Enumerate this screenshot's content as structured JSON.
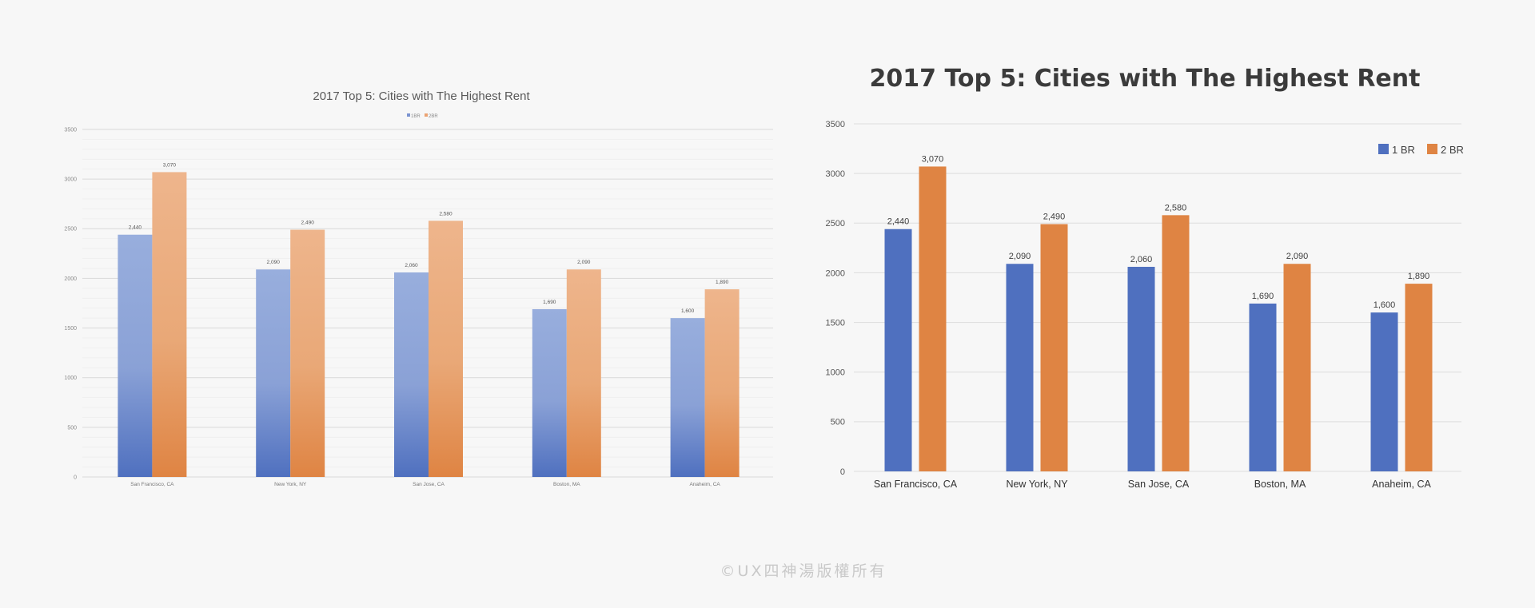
{
  "chart_data": [
    {
      "type": "bar",
      "title": "2017 Top 5: Cities with The Highest Rent",
      "categories": [
        "San Francisco, CA",
        "New York, NY",
        "San Jose, CA",
        "Boston, MA",
        "Anaheim, CA"
      ],
      "series": [
        {
          "name": "1BR",
          "values": [
            2440,
            2090,
            2060,
            1690,
            1600
          ],
          "value_labels": [
            "2,440",
            "2,090",
            "2,060",
            "1,690",
            "1,600"
          ],
          "color_top": "#98aedd",
          "color_bottom": "#4f70bf"
        },
        {
          "name": "2BR",
          "values": [
            3070,
            2490,
            2580,
            2090,
            1890
          ],
          "value_labels": [
            "3,070",
            "2,490",
            "2,580",
            "2,090",
            "1,890"
          ],
          "color_top": "#eeb58c",
          "color_bottom": "#df8443"
        }
      ],
      "ylim": [
        0,
        3500
      ],
      "yticks": [
        0,
        500,
        1000,
        1500,
        2000,
        2500,
        3000,
        3500
      ],
      "grid": "major and minor",
      "legend": "top-center"
    },
    {
      "type": "bar",
      "title": "2017 Top 5: Cities with The Highest Rent",
      "categories": [
        "San Francisco, CA",
        "New York, NY",
        "San Jose, CA",
        "Boston, MA",
        "Anaheim, CA"
      ],
      "series": [
        {
          "name": "1 BR",
          "values": [
            2440,
            2090,
            2060,
            1690,
            1600
          ],
          "value_labels": [
            "2,440",
            "2,090",
            "2,060",
            "1,690",
            "1,600"
          ],
          "color": "#4f70bf"
        },
        {
          "name": "2 BR",
          "values": [
            3070,
            2490,
            2580,
            2090,
            1890
          ],
          "value_labels": [
            "3,070",
            "2,490",
            "2,580",
            "2,090",
            "1,890"
          ],
          "color": "#df8443"
        }
      ],
      "ylim": [
        0,
        3500
      ],
      "yticks": [
        0,
        500,
        1000,
        1500,
        2000,
        2500,
        3000,
        3500
      ],
      "grid": "major",
      "legend": "top-right"
    }
  ],
  "watermark": "©UX四神湯版權所有"
}
